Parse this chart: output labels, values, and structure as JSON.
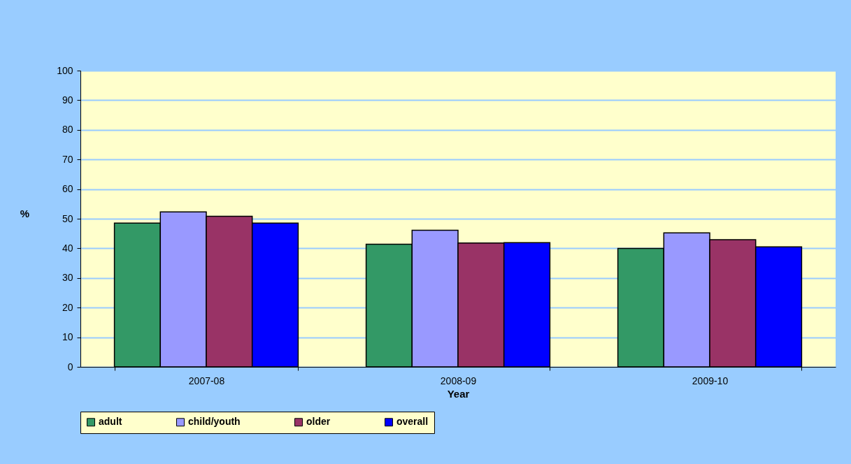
{
  "chart_data": {
    "type": "bar",
    "xlabel": "Year",
    "ylabel": "%",
    "categories": [
      "2007-08",
      "2008-09",
      "2009-10"
    ],
    "series": [
      {
        "name": "adult",
        "color": "#339966",
        "values": [
          48.5,
          41.4,
          40.0
        ]
      },
      {
        "name": "child/youth",
        "color": "#9999ff",
        "values": [
          52.3,
          46.1,
          45.2
        ]
      },
      {
        "name": "older",
        "color": "#993366",
        "values": [
          50.8,
          41.8,
          42.9
        ]
      },
      {
        "name": "overall",
        "color": "#0000ff",
        "values": [
          48.5,
          41.9,
          40.5
        ]
      }
    ],
    "ylim": [
      0,
      100
    ],
    "yticks": [
      0,
      10,
      20,
      30,
      40,
      50,
      60,
      70,
      80,
      90,
      100
    ],
    "grid": "y",
    "legend": "bottom"
  }
}
